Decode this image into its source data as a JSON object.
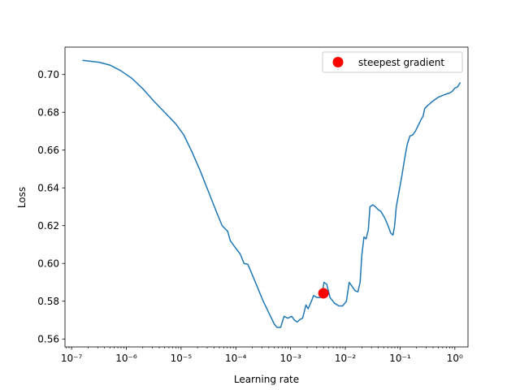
{
  "chart_data": {
    "type": "line",
    "xlabel": "Learning rate",
    "ylabel": "Loss",
    "xscale": "log",
    "xlim_exp": [
      -7.12,
      0.24
    ],
    "ylim": [
      0.5558,
      0.7145
    ],
    "grid": false,
    "legend_position": "top-right",
    "x_ticks": [
      {
        "exp": -7,
        "label": "10⁻⁷"
      },
      {
        "exp": -6,
        "label": "10⁻⁶"
      },
      {
        "exp": -5,
        "label": "10⁻⁵"
      },
      {
        "exp": -4,
        "label": "10⁻⁴"
      },
      {
        "exp": -3,
        "label": "10⁻³"
      },
      {
        "exp": -2,
        "label": "10⁻²"
      },
      {
        "exp": -1,
        "label": "10⁻¹"
      },
      {
        "exp": 0,
        "label": "10⁰"
      }
    ],
    "y_ticks": [
      {
        "v": 0.56,
        "label": "0.56"
      },
      {
        "v": 0.58,
        "label": "0.58"
      },
      {
        "v": 0.6,
        "label": "0.60"
      },
      {
        "v": 0.62,
        "label": "0.62"
      },
      {
        "v": 0.64,
        "label": "0.64"
      },
      {
        "v": 0.66,
        "label": "0.66"
      },
      {
        "v": 0.68,
        "label": "0.68"
      },
      {
        "v": 0.7,
        "label": "0.70"
      }
    ],
    "series": [
      {
        "color": "#1f77b4",
        "points": [
          [
            -6.8,
            0.7075
          ],
          [
            -6.5,
            0.7065
          ],
          [
            -6.3,
            0.705
          ],
          [
            -6.1,
            0.702
          ],
          [
            -5.9,
            0.698
          ],
          [
            -5.7,
            0.6925
          ],
          [
            -5.5,
            0.686
          ],
          [
            -5.3,
            0.68
          ],
          [
            -5.1,
            0.674
          ],
          [
            -4.95,
            0.668
          ],
          [
            -4.8,
            0.659
          ],
          [
            -4.65,
            0.649
          ],
          [
            -4.5,
            0.638
          ],
          [
            -4.35,
            0.627
          ],
          [
            -4.25,
            0.62
          ],
          [
            -4.15,
            0.617
          ],
          [
            -4.1,
            0.612
          ],
          [
            -4.0,
            0.608
          ],
          [
            -3.92,
            0.605
          ],
          [
            -3.85,
            0.6
          ],
          [
            -3.78,
            0.5995
          ],
          [
            -3.7,
            0.594
          ],
          [
            -3.6,
            0.587
          ],
          [
            -3.5,
            0.58
          ],
          [
            -3.4,
            0.574
          ],
          [
            -3.3,
            0.568
          ],
          [
            -3.25,
            0.5662
          ],
          [
            -3.18,
            0.5662
          ],
          [
            -3.12,
            0.572
          ],
          [
            -3.05,
            0.571
          ],
          [
            -2.98,
            0.572
          ],
          [
            -2.93,
            0.57
          ],
          [
            -2.88,
            0.569
          ],
          [
            -2.82,
            0.5705
          ],
          [
            -2.78,
            0.571
          ],
          [
            -2.72,
            0.578
          ],
          [
            -2.68,
            0.576
          ],
          [
            -2.62,
            0.58
          ],
          [
            -2.58,
            0.583
          ],
          [
            -2.52,
            0.582
          ],
          [
            -2.46,
            0.582
          ],
          [
            -2.43,
            0.583
          ],
          [
            -2.39,
            0.59
          ],
          [
            -2.34,
            0.589
          ],
          [
            -2.28,
            0.582
          ],
          [
            -2.2,
            0.579
          ],
          [
            -2.12,
            0.5775
          ],
          [
            -2.05,
            0.5775
          ],
          [
            -1.98,
            0.58
          ],
          [
            -1.93,
            0.59
          ],
          [
            -1.88,
            0.588
          ],
          [
            -1.82,
            0.5855
          ],
          [
            -1.77,
            0.585
          ],
          [
            -1.73,
            0.59
          ],
          [
            -1.7,
            0.604
          ],
          [
            -1.66,
            0.614
          ],
          [
            -1.62,
            0.613
          ],
          [
            -1.58,
            0.618
          ],
          [
            -1.55,
            0.63
          ],
          [
            -1.5,
            0.631
          ],
          [
            -1.45,
            0.63
          ],
          [
            -1.4,
            0.6285
          ],
          [
            -1.35,
            0.6275
          ],
          [
            -1.28,
            0.624
          ],
          [
            -1.22,
            0.62
          ],
          [
            -1.17,
            0.616
          ],
          [
            -1.13,
            0.615
          ],
          [
            -1.1,
            0.62
          ],
          [
            -1.07,
            0.63
          ],
          [
            -1.02,
            0.638
          ],
          [
            -0.97,
            0.646
          ],
          [
            -0.92,
            0.655
          ],
          [
            -0.87,
            0.663
          ],
          [
            -0.82,
            0.6675
          ],
          [
            -0.77,
            0.668
          ],
          [
            -0.72,
            0.67
          ],
          [
            -0.67,
            0.673
          ],
          [
            -0.62,
            0.676
          ],
          [
            -0.58,
            0.678
          ],
          [
            -0.55,
            0.682
          ],
          [
            -0.5,
            0.6835
          ],
          [
            -0.4,
            0.686
          ],
          [
            -0.3,
            0.688
          ],
          [
            -0.2,
            0.6892
          ],
          [
            -0.1,
            0.6902
          ],
          [
            -0.05,
            0.691
          ],
          [
            0.0,
            0.6928
          ],
          [
            0.05,
            0.6935
          ],
          [
            0.1,
            0.6958
          ]
        ]
      }
    ],
    "marker": {
      "label": "steepest gradient",
      "x_exp": -2.4,
      "y": 0.5842,
      "color": "#ff0000"
    }
  }
}
